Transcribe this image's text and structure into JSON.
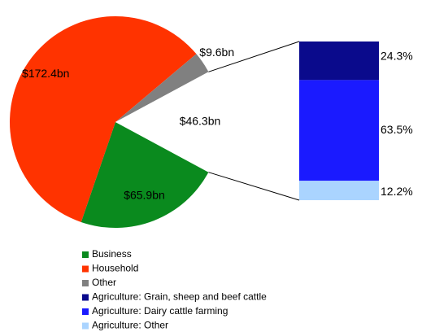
{
  "chart_data": {
    "type": "pie-of-bar",
    "categories": [
      "Business",
      "Household",
      "Other",
      null
    ],
    "values": [
      65.9,
      172.4,
      9.6,
      46.3
    ],
    "value_labels": [
      "$65.9bn",
      "$172.4bn",
      "$9.6bn",
      "$46.3bn"
    ],
    "colors": [
      "#0a8a1e",
      "#ff3300",
      "#808080",
      null
    ],
    "breakdown": {
      "categories": [
        "Agriculture: Grain, sheep and beef cattle",
        "Agriculture: Dairy cattle farming",
        "Agriculture: Other"
      ],
      "values": [
        24.3,
        63.5,
        12.2
      ],
      "value_labels": [
        "24.3%",
        "63.5%",
        "12.2%"
      ],
      "colors": [
        "#0a0a8c",
        "#1a1aff",
        "#aad4ff"
      ]
    }
  }
}
